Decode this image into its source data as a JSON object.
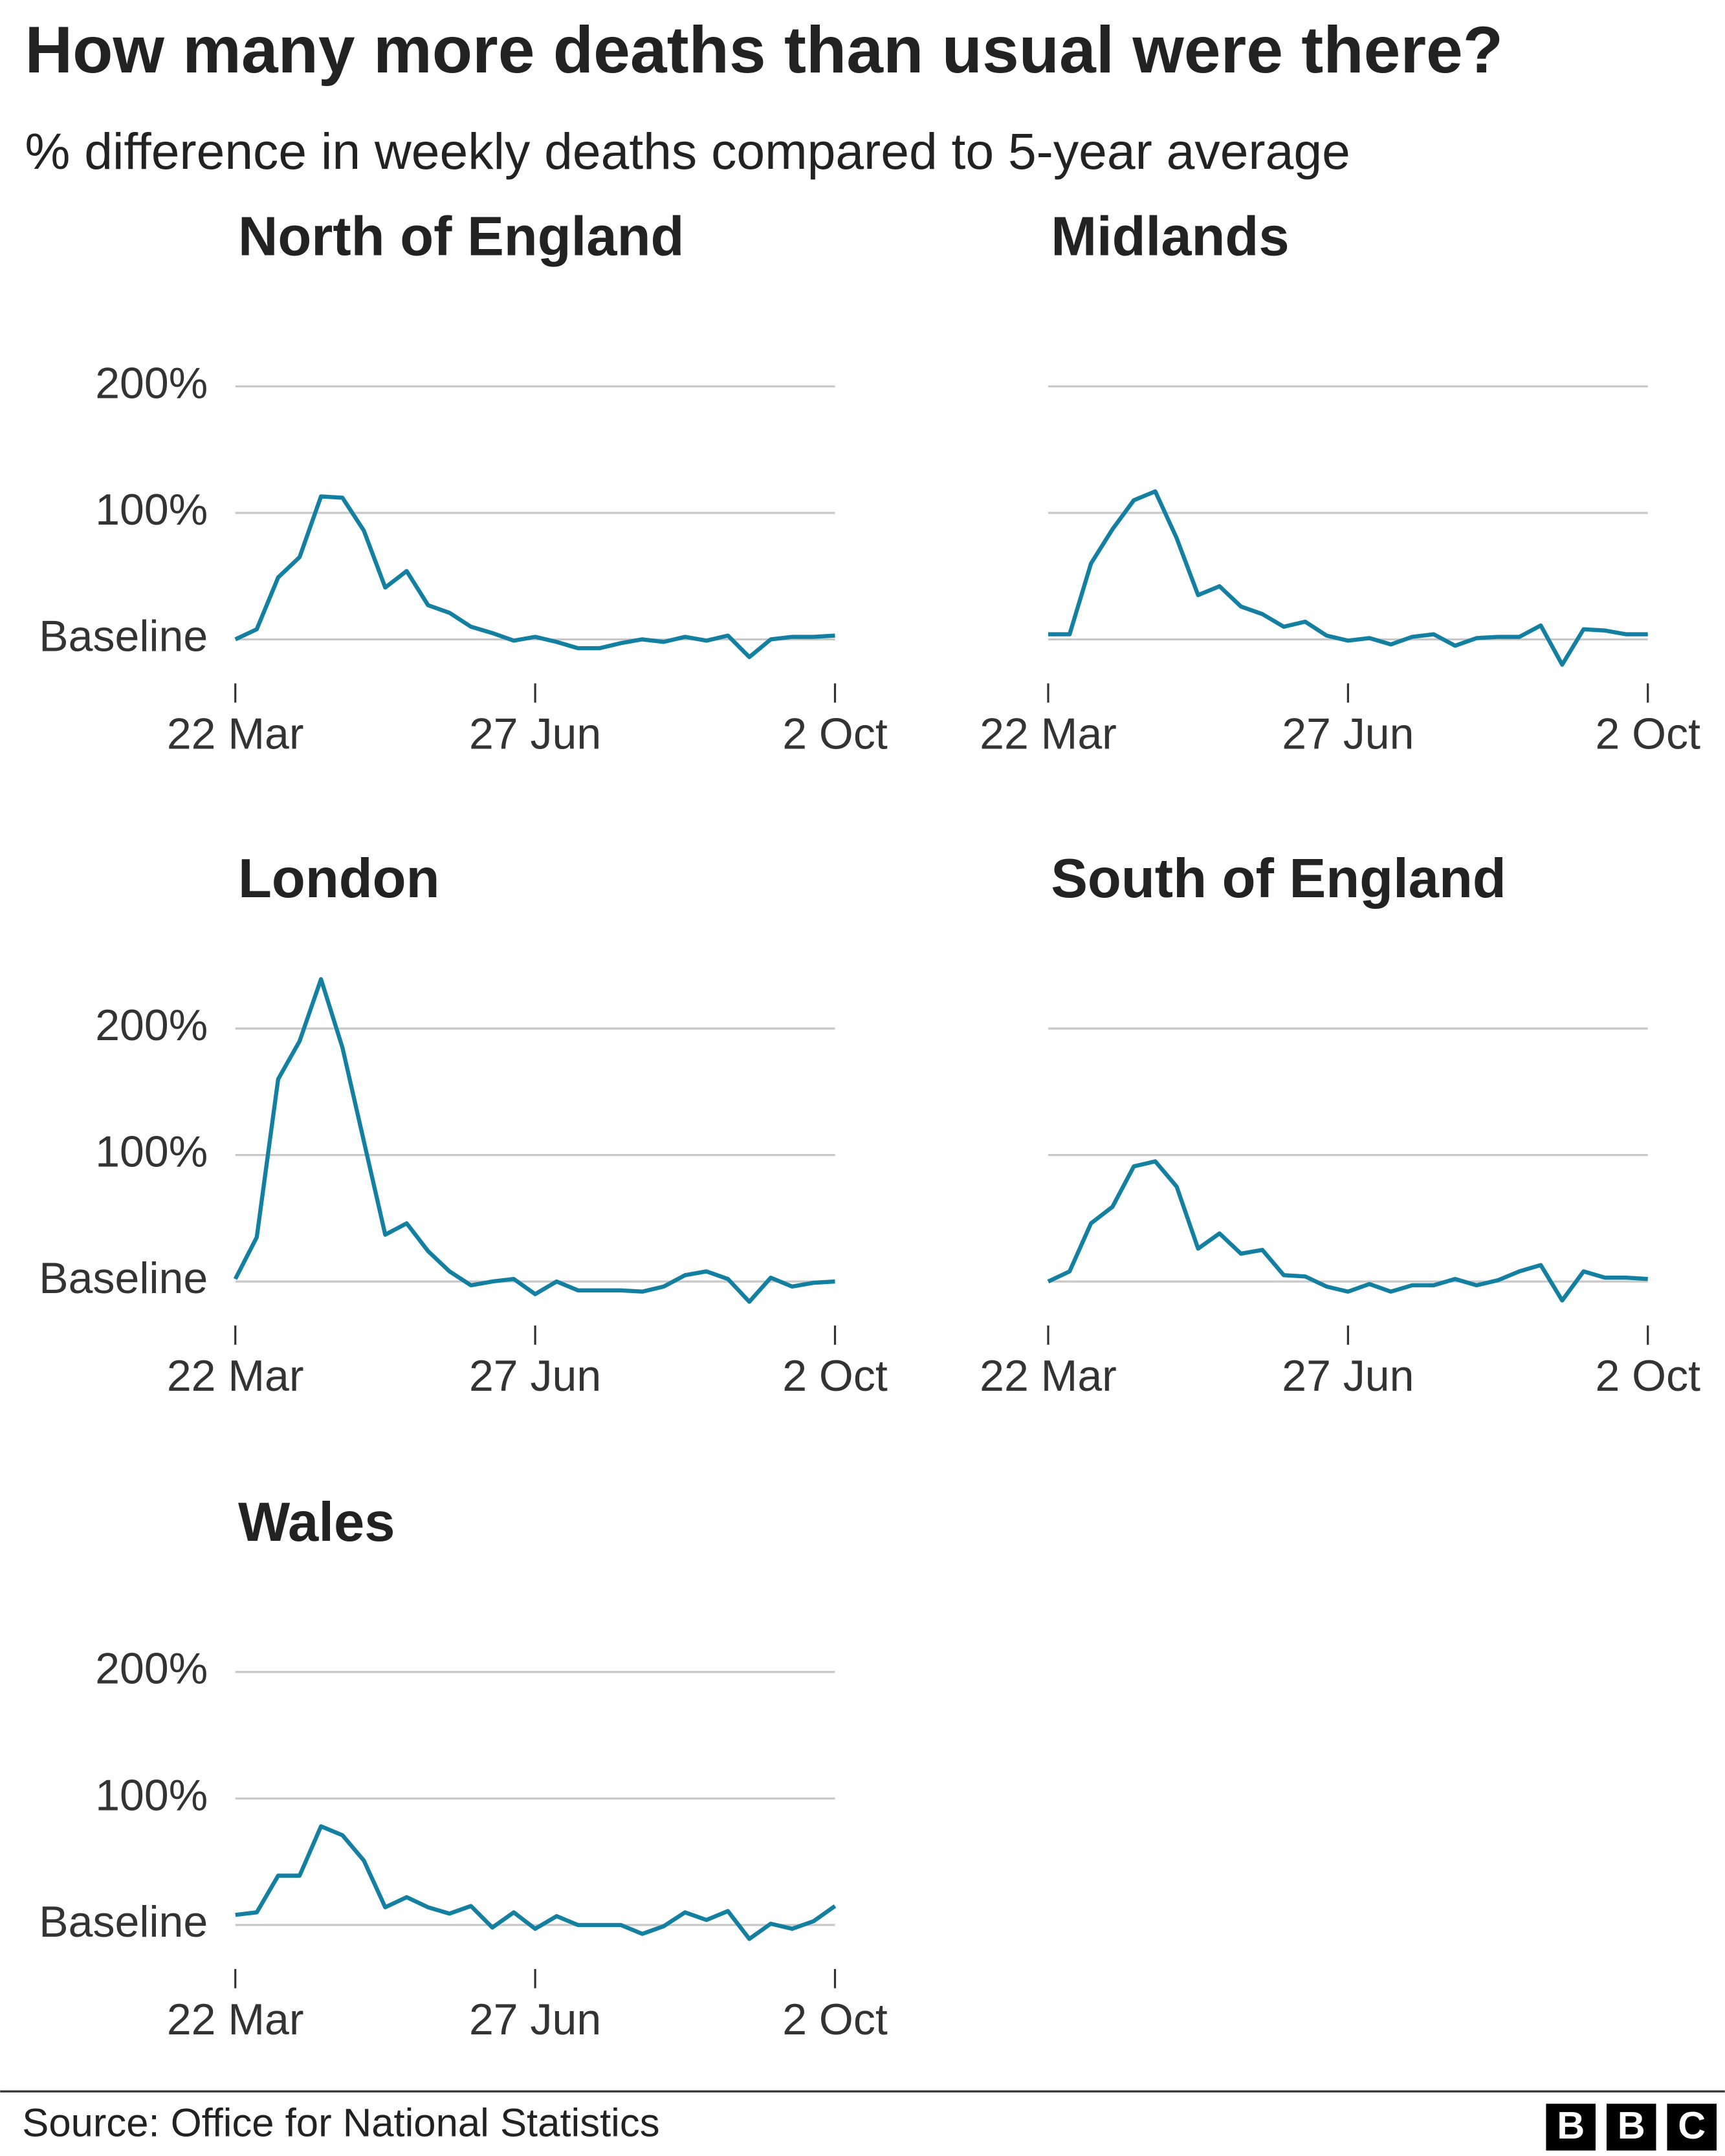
{
  "title": "How many more deaths than usual were there?",
  "subtitle": "% difference in weekly deaths compared to 5-year average",
  "source": "Source: Office for National Statistics",
  "logo_letters": [
    "B",
    "B",
    "C"
  ],
  "chart_data": [
    {
      "type": "line",
      "title": "North of England",
      "color": "#1380a1",
      "x": [
        0,
        1,
        2,
        3,
        4,
        5,
        6,
        7,
        8,
        9,
        10,
        11,
        12,
        13,
        14,
        15,
        16,
        17,
        18,
        19,
        20,
        21,
        22,
        23,
        24,
        25,
        26,
        27,
        28
      ],
      "values": [
        0,
        8,
        49,
        65,
        113,
        112,
        86,
        41,
        54,
        27,
        21,
        10,
        5,
        -1,
        2,
        -2,
        -7,
        -7,
        -3,
        0,
        -2,
        2,
        -1,
        3,
        -14,
        0,
        2,
        2,
        3
      ],
      "xlim": [
        0,
        28
      ],
      "xticks": [
        {
          "value": 0,
          "label": "22 Mar"
        },
        {
          "value": 14,
          "label": "27 Jun"
        },
        {
          "value": 28,
          "label": "2 Oct"
        }
      ],
      "ylim": [
        -20,
        240
      ],
      "yticks": [
        {
          "value": 0,
          "label": "Baseline"
        },
        {
          "value": 100,
          "label": "100%"
        },
        {
          "value": 200,
          "label": "200%"
        }
      ],
      "grid": true
    },
    {
      "type": "line",
      "title": "Midlands",
      "color": "#1380a1",
      "x": [
        0,
        1,
        2,
        3,
        4,
        5,
        6,
        7,
        8,
        9,
        10,
        11,
        12,
        13,
        14,
        15,
        16,
        17,
        18,
        19,
        20,
        21,
        22,
        23,
        24,
        25,
        26,
        27,
        28
      ],
      "values": [
        4,
        4,
        60,
        87,
        110,
        117,
        80,
        35,
        42,
        26,
        20,
        10,
        14,
        3,
        -1,
        1,
        -4,
        2,
        4,
        -5,
        1,
        2,
        2,
        11,
        -20,
        8,
        7,
        4,
        4
      ],
      "xlim": [
        0,
        28
      ],
      "xticks": [
        {
          "value": 0,
          "label": "22 Mar"
        },
        {
          "value": 14,
          "label": "27 Jun"
        },
        {
          "value": 28,
          "label": "2 Oct"
        }
      ],
      "ylim": [
        -20,
        240
      ],
      "yticks": [
        0,
        100,
        200
      ],
      "grid": true
    },
    {
      "type": "line",
      "title": "London",
      "color": "#1380a1",
      "x": [
        0,
        1,
        2,
        3,
        4,
        5,
        6,
        7,
        8,
        9,
        10,
        11,
        12,
        13,
        14,
        15,
        16,
        17,
        18,
        19,
        20,
        21,
        22,
        23,
        24,
        25,
        26,
        27,
        28
      ],
      "values": [
        2,
        35,
        160,
        190,
        239,
        185,
        111,
        37,
        46,
        24,
        8,
        -3,
        0,
        2,
        -10,
        0,
        -7,
        -7,
        -7,
        -8,
        -4,
        5,
        8,
        2,
        -16,
        3,
        -4,
        -1,
        0
      ],
      "xlim": [
        0,
        28
      ],
      "xticks": [
        {
          "value": 0,
          "label": "22 Mar"
        },
        {
          "value": 14,
          "label": "27 Jun"
        },
        {
          "value": 28,
          "label": "2 Oct"
        }
      ],
      "ylim": [
        -20,
        240
      ],
      "yticks": [
        {
          "value": 0,
          "label": "Baseline"
        },
        {
          "value": 100,
          "label": "100%"
        },
        {
          "value": 200,
          "label": "200%"
        }
      ],
      "grid": true
    },
    {
      "type": "line",
      "title": "South of England",
      "color": "#1380a1",
      "x": [
        0,
        1,
        2,
        3,
        4,
        5,
        6,
        7,
        8,
        9,
        10,
        11,
        12,
        13,
        14,
        15,
        16,
        17,
        18,
        19,
        20,
        21,
        22,
        23,
        24,
        25,
        26,
        27,
        28
      ],
      "values": [
        0,
        8,
        46,
        59,
        91,
        95,
        75,
        26,
        38,
        22,
        25,
        5,
        4,
        -4,
        -8,
        -2,
        -8,
        -3,
        -3,
        2,
        -3,
        1,
        8,
        13,
        -15,
        8,
        3,
        3,
        2
      ],
      "xlim": [
        0,
        28
      ],
      "xticks": [
        {
          "value": 0,
          "label": "22 Mar"
        },
        {
          "value": 14,
          "label": "27 Jun"
        },
        {
          "value": 28,
          "label": "2 Oct"
        }
      ],
      "ylim": [
        -20,
        240
      ],
      "yticks": [
        0,
        100,
        200
      ],
      "grid": true
    },
    {
      "type": "line",
      "title": "Wales",
      "color": "#1380a1",
      "x": [
        0,
        1,
        2,
        3,
        4,
        5,
        6,
        7,
        8,
        9,
        10,
        11,
        12,
        13,
        14,
        15,
        16,
        17,
        18,
        19,
        20,
        21,
        22,
        23,
        24,
        25,
        26,
        27,
        28
      ],
      "values": [
        8,
        10,
        39,
        39,
        78,
        71,
        51,
        14,
        22,
        14,
        9,
        15,
        -2,
        10,
        -3,
        7,
        0,
        0,
        0,
        -7,
        -1,
        10,
        4,
        11,
        -11,
        1,
        -3,
        3,
        15
      ],
      "xlim": [
        0,
        28
      ],
      "xticks": [
        {
          "value": 0,
          "label": "22 Mar"
        },
        {
          "value": 14,
          "label": "27 Jun"
        },
        {
          "value": 28,
          "label": "2 Oct"
        }
      ],
      "ylim": [
        -20,
        240
      ],
      "yticks": [
        {
          "value": 0,
          "label": "Baseline"
        },
        {
          "value": 100,
          "label": "100%"
        },
        {
          "value": 200,
          "label": "200%"
        }
      ],
      "grid": true
    }
  ]
}
